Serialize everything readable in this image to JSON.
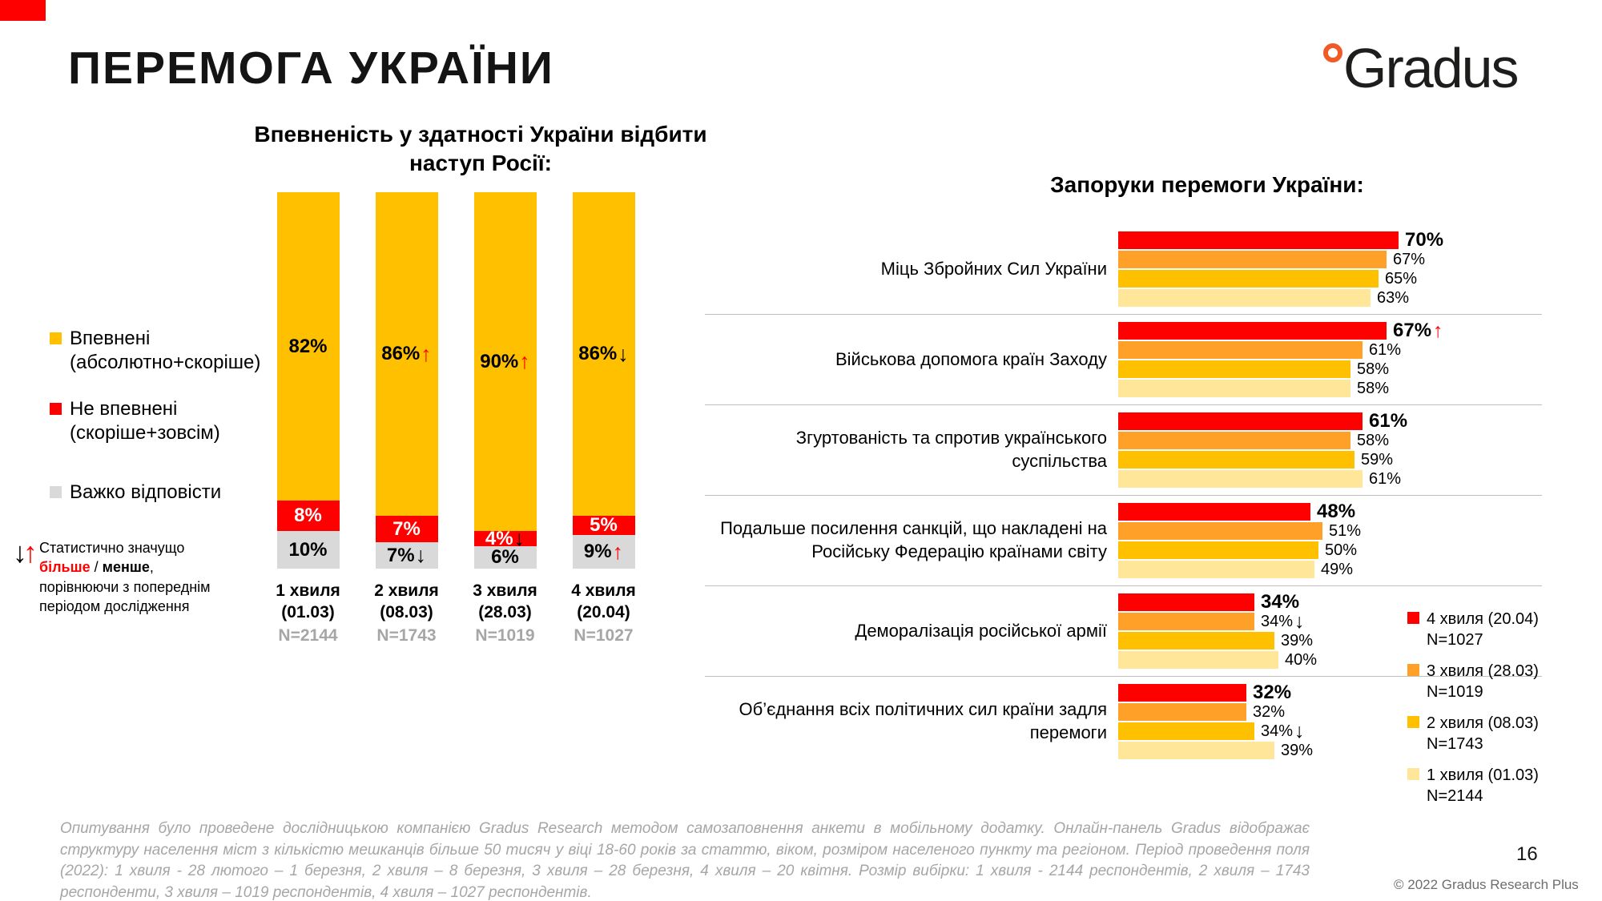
{
  "slide": {
    "title": "ПЕРЕМОГА УКРАЇНИ",
    "page_number": "16",
    "copyright": "© 2022 Gradus Research Plus",
    "footnote": "Опитування було проведене дослідницькою компанією Gradus Research методом самозаповнення анкети в мобільному додатку. Онлайн-панель Gradus відображає структуру населення міст з кількістю мешканців більше 50 тисяч у віці 18-60 років за статтю, віком, розміром населеного пункту та регіоном. Період проведення поля (2022): 1 хвиля - 28 лютого – 1 березня, 2 хвиля – 8 березня, 3 хвиля – 28 березня, 4 хвиля – 20 квітня. Розмір вибірки: 1 хвиля - 2144 респондентів, 2 хвиля – 1743 респонденти, 3 хвиля – 1019 респондентів, 4 хвиля – 1027 респондентів."
  },
  "logo": {
    "brand": "Gradus",
    "accent_color": "#F05A28"
  },
  "colors": {
    "confident_yellow": "#FFC000",
    "not_confident_red": "#FF0000",
    "hard_gray": "#D9D9D9",
    "wave4_red": "#FF0000",
    "wave3_orange": "#FFA128",
    "wave2_yellow": "#FFC000",
    "wave1_cream": "#FFE699",
    "separator_gray": "#BFBFBF"
  },
  "left_chart": {
    "note": {
      "prefix": "Статистично значущо ",
      "more": "більше",
      "sep": " / ",
      "less": "менше",
      "suffix": ", порівнюючи з попереднім періодом дослідження"
    }
  },
  "chart_data": [
    {
      "type": "bar",
      "subtype": "stacked-column",
      "title": "Впевненість у здатності України відбити наступ Росії:",
      "unit": "%",
      "ylim": [
        0,
        100
      ],
      "series": [
        {
          "key": "confident",
          "name": "Впевнені\n(абсолютно+скоріше)",
          "color": "#FFC000"
        },
        {
          "key": "not_confident",
          "name": "Не впевнені\n(скоріше+зовсім)",
          "color": "#FF0000"
        },
        {
          "key": "hard",
          "name": "Важко відповісти",
          "color": "#D9D9D9"
        }
      ],
      "columns": [
        {
          "label": "1 хвиля\n(01.03)",
          "n": "N=2144",
          "segments": [
            {
              "series": "confident",
              "value": 82,
              "label": "82%",
              "arrow": null
            },
            {
              "series": "not_confident",
              "value": 8,
              "label": "8%",
              "arrow": null
            },
            {
              "series": "hard",
              "value": 10,
              "label": "10%",
              "arrow": null
            }
          ]
        },
        {
          "label": "2 хвиля\n(08.03)",
          "n": "N=1743",
          "segments": [
            {
              "series": "confident",
              "value": 86,
              "label": "86%",
              "arrow": "up"
            },
            {
              "series": "not_confident",
              "value": 7,
              "label": "7%",
              "arrow": null
            },
            {
              "series": "hard",
              "value": 7,
              "label": "7%",
              "arrow": "down"
            }
          ]
        },
        {
          "label": "3 хвиля\n(28.03)",
          "n": "N=1019",
          "segments": [
            {
              "series": "confident",
              "value": 90,
              "label": "90%",
              "arrow": "up"
            },
            {
              "series": "not_confident",
              "value": 4,
              "label": "4%",
              "arrow": "down"
            },
            {
              "series": "hard",
              "value": 6,
              "label": "6%",
              "arrow": null
            }
          ]
        },
        {
          "label": "4 хвиля\n(20.04)",
          "n": "N=1027",
          "segments": [
            {
              "series": "confident",
              "value": 86,
              "label": "86%",
              "arrow": "down"
            },
            {
              "series": "not_confident",
              "value": 5,
              "label": "5%",
              "arrow": null
            },
            {
              "series": "hard",
              "value": 9,
              "label": "9%",
              "arrow": "up"
            }
          ]
        }
      ]
    },
    {
      "type": "bar",
      "subtype": "grouped-horizontal",
      "title": "Запоруки перемоги України:",
      "unit": "%",
      "xlim": [
        0,
        100
      ],
      "series": [
        {
          "name": "4 хвиля (20.04)",
          "n": "N=1027",
          "color": "#FF0000"
        },
        {
          "name": "3 хвиля (28.03)",
          "n": "N=1019",
          "color": "#FFA128"
        },
        {
          "name": "2 хвиля (08.03)",
          "n": "N=1743",
          "color": "#FFC000"
        },
        {
          "name": "1 хвиля (01.03)",
          "n": "N=2144",
          "color": "#FFE699"
        }
      ],
      "groups": [
        {
          "label": "Міць Збройних Сил України",
          "values": [
            70,
            67,
            65,
            63
          ],
          "arrows": [
            null,
            null,
            null,
            null
          ]
        },
        {
          "label": "Військова допомога країн Заходу",
          "values": [
            67,
            61,
            58,
            58
          ],
          "arrows": [
            "up",
            null,
            null,
            null
          ]
        },
        {
          "label": "Згуртованість та спротив українського суспільства",
          "values": [
            61,
            58,
            59,
            61
          ],
          "arrows": [
            null,
            null,
            null,
            null
          ]
        },
        {
          "label": "Подальше посилення санкцій, що накладені на Російську Федерацію країнами світу",
          "values": [
            48,
            51,
            50,
            49
          ],
          "arrows": [
            null,
            null,
            null,
            null
          ]
        },
        {
          "label": "Деморалізація російської армії",
          "values": [
            34,
            34,
            39,
            40
          ],
          "arrows": [
            null,
            "down",
            null,
            null
          ]
        },
        {
          "label": "Об’єднання всіх політичних сил країни задля перемоги",
          "values": [
            32,
            32,
            34,
            39
          ],
          "arrows": [
            null,
            null,
            "down",
            null
          ]
        }
      ]
    }
  ]
}
